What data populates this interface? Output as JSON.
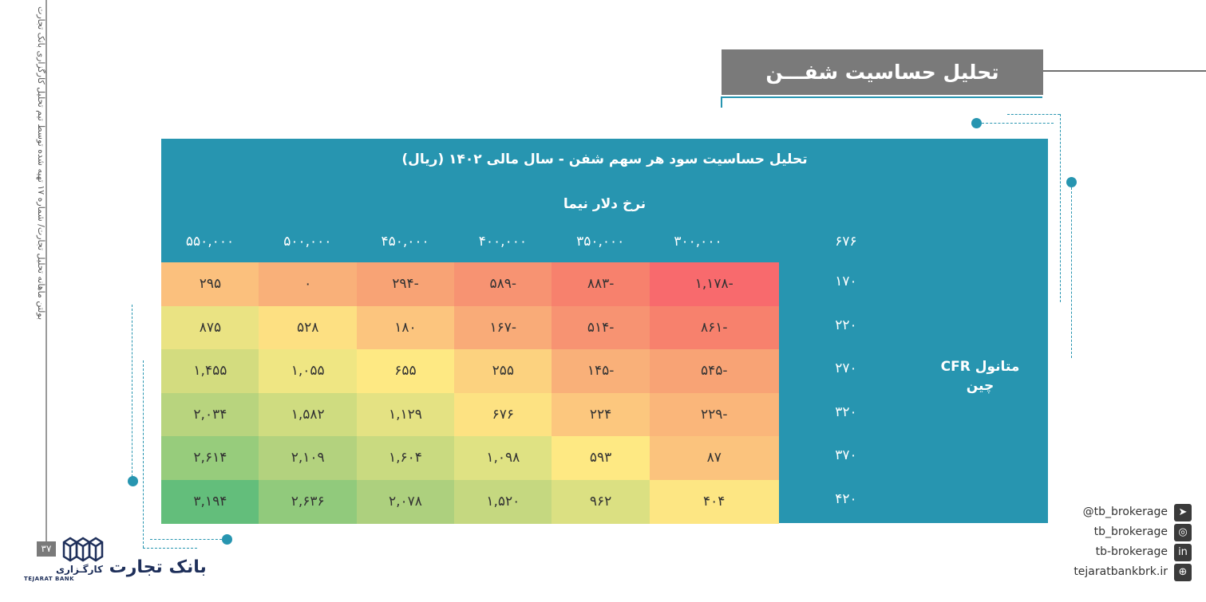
{
  "sidebar": {
    "caption": "بولتن ماهانه تحلیل تجارت/ شماره ۱۷ تهیه شده توسط تیم تحلیل کارگزاری بانک تجارت",
    "page_number": "۳۷"
  },
  "logo": {
    "name_fa": "بانک تجارت",
    "subtitle_fa": "کارگـزاری",
    "name_en": "TEJARAT BANK"
  },
  "header": {
    "title": "تحلیل حساسیت شفـــن"
  },
  "table": {
    "title": "تحلیل حساسیت سود هر سهم شفن - سال مالی ۱۴۰۲ (ریال)",
    "x_label": "نرخ دلار نیما",
    "corner": "۶۷۶",
    "y_label_line1": "متانول CFR",
    "y_label_line2": "چین",
    "columns": [
      "۵۵۰,۰۰۰",
      "۵۰۰,۰۰۰",
      "۴۵۰,۰۰۰",
      "۴۰۰,۰۰۰",
      "۳۵۰,۰۰۰",
      "۳۰۰,۰۰۰"
    ],
    "rows": [
      {
        "label": "۱۷۰",
        "cells": [
          "۲۹۵",
          "۰",
          "۲۹۴-",
          "۵۸۹-",
          "۸۸۳-",
          "۱,۱۷۸-"
        ]
      },
      {
        "label": "۲۲۰",
        "cells": [
          "۸۷۵",
          "۵۲۸",
          "۱۸۰",
          "۱۶۷-",
          "۵۱۴-",
          "۸۶۱-"
        ]
      },
      {
        "label": "۲۷۰",
        "cells": [
          "۱,۴۵۵",
          "۱,۰۵۵",
          "۶۵۵",
          "۲۵۵",
          "۱۴۵-",
          "۵۴۵-"
        ]
      },
      {
        "label": "۳۲۰",
        "cells": [
          "۲,۰۳۴",
          "۱,۵۸۲",
          "۱,۱۲۹",
          "۶۷۶",
          "۲۲۴",
          "۲۲۹-"
        ]
      },
      {
        "label": "۳۷۰",
        "cells": [
          "۲,۶۱۴",
          "۲,۱۰۹",
          "۱,۶۰۴",
          "۱,۰۹۸",
          "۵۹۳",
          "۸۷"
        ]
      },
      {
        "label": "۴۲۰",
        "cells": [
          "۳,۱۹۴",
          "۲,۶۳۶",
          "۲,۰۷۸",
          "۱,۵۲۰",
          "۹۶۲",
          "۴۰۴"
        ]
      }
    ],
    "colors": [
      [
        "#fbc07d",
        "#f9b079",
        "#f8a375",
        "#f79372",
        "#f7816d",
        "#f86a6d"
      ],
      [
        "#eae383",
        "#fde082",
        "#fcc57e",
        "#f9ab78",
        "#f79372",
        "#f7816d"
      ],
      [
        "#d3dc7f",
        "#efe683",
        "#fee983",
        "#fcd27f",
        "#f9b079",
        "#f8a375"
      ],
      [
        "#b8d47e",
        "#cfdc80",
        "#e4e283",
        "#fde282",
        "#fcc77e",
        "#fab67a"
      ],
      [
        "#97cc7c",
        "#b3d27e",
        "#c9da80",
        "#dfe283",
        "#fee983",
        "#fbc37d"
      ],
      [
        "#63be7b",
        "#91ca7c",
        "#add07e",
        "#c5d880",
        "#dbe082",
        "#fde683"
      ]
    ]
  },
  "socials": [
    {
      "icon": "telegram-icon",
      "glyph": "➤",
      "text": "@tb_brokerage"
    },
    {
      "icon": "instagram-icon",
      "glyph": "◎",
      "text": "tb_brokerage"
    },
    {
      "icon": "linkedin-icon",
      "glyph": "in",
      "text": "tb-brokerage"
    },
    {
      "icon": "globe-icon",
      "glyph": "⊕",
      "text": "tejaratbankbrk.ir"
    }
  ]
}
